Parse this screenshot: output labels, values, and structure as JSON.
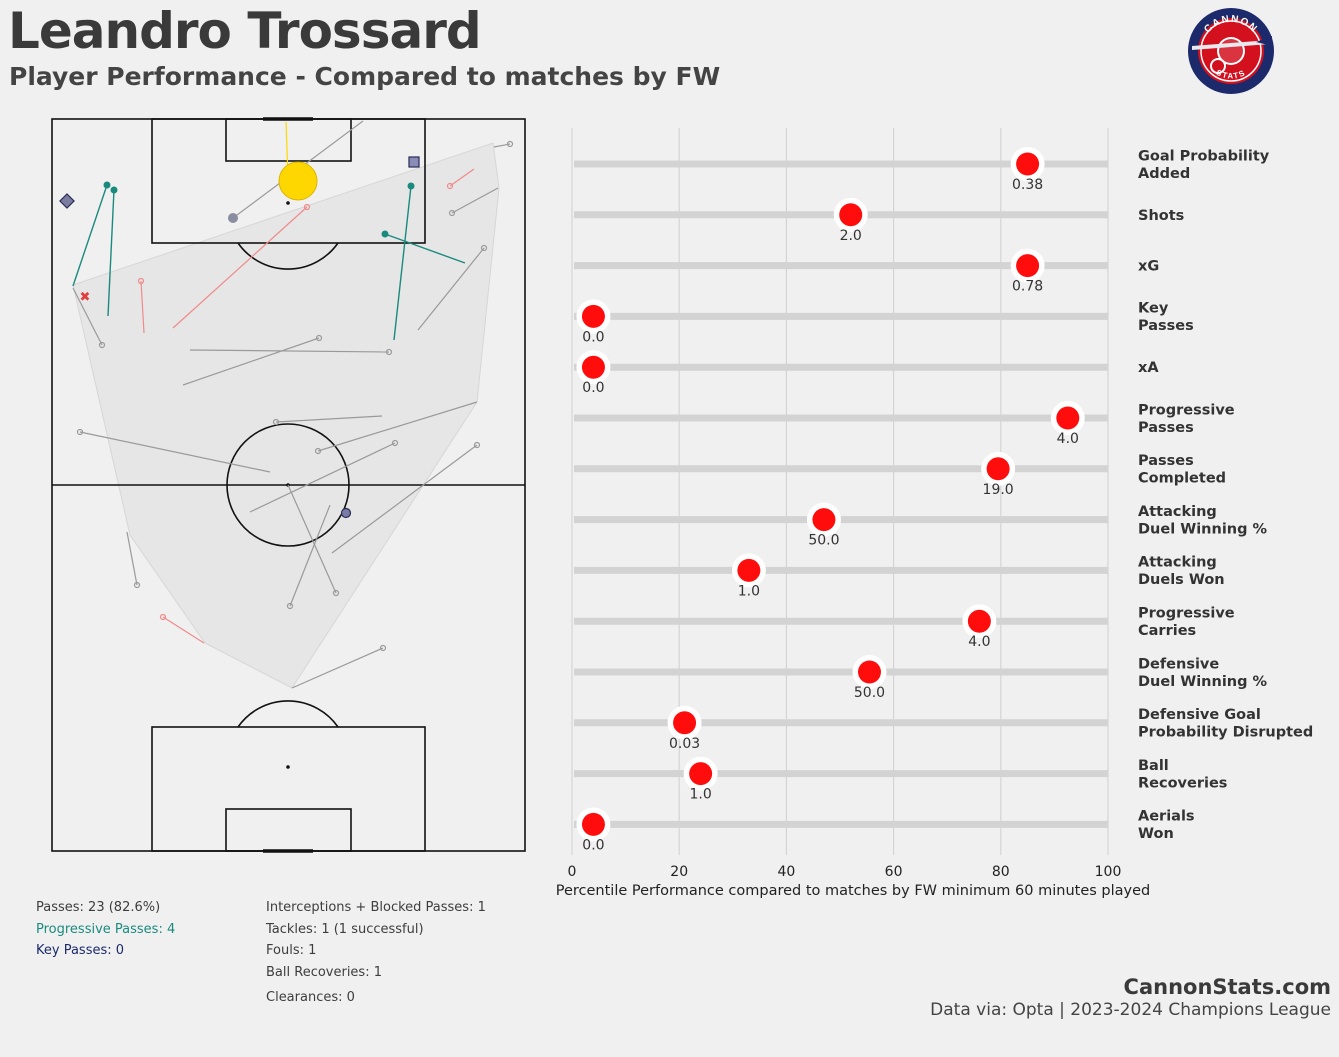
{
  "header": {
    "title": "Leandro Trossard",
    "subtitle": "Player Performance - Compared to matches by FW"
  },
  "logo": {
    "top_text": "CANNON",
    "bottom_text": "STATS"
  },
  "colors": {
    "background": "#f0f0f0",
    "dot": "#ff0d0d",
    "track": "#d3d3d3",
    "progressive_pass": "#1a8a7e",
    "key_pass": "#1c2a6b",
    "failed_pass": "#f08a8a",
    "completed_pass": "#9a9a9a",
    "shot_goal": "#ffd700"
  },
  "stats_left": {
    "passes": "Passes: 23 (82.6%)",
    "progressive_passes": "Progressive Passes: 4",
    "key_passes": "Key Passes: 0"
  },
  "stats_right": {
    "interceptions": "Interceptions + Blocked Passes: 1",
    "tackles": "Tackles: 1 (1 successful)",
    "fouls": "Fouls: 1",
    "ball_recoveries": "Ball Recoveries: 1",
    "clearances": "Clearances: 0"
  },
  "footer": {
    "brand": "CannonStats.com",
    "source": "Data via: Opta | 2023-2024 Champions League"
  },
  "chart_data": {
    "type": "dot",
    "orientation": "horizontal",
    "xlabel": "Percentile Performance compared to matches by FW minimum 60 minutes played",
    "xlim": [
      0,
      100
    ],
    "xticks": [
      0,
      20,
      40,
      60,
      80,
      100
    ],
    "grid": true,
    "metrics": [
      {
        "label": [
          "Goal Probability",
          "Added"
        ],
        "percentile": 85,
        "value_label": "0.38"
      },
      {
        "label": [
          "Shots"
        ],
        "percentile": 52,
        "value_label": "2.0"
      },
      {
        "label": [
          "xG"
        ],
        "percentile": 85,
        "value_label": "0.78"
      },
      {
        "label": [
          "Key",
          "Passes"
        ],
        "percentile": 4,
        "value_label": "0.0"
      },
      {
        "label": [
          "xA"
        ],
        "percentile": 4,
        "value_label": "0.0"
      },
      {
        "label": [
          "Progressive",
          "Passes"
        ],
        "percentile": 92.5,
        "value_label": "4.0"
      },
      {
        "label": [
          "Passes",
          "Completed"
        ],
        "percentile": 79.5,
        "value_label": "19.0"
      },
      {
        "label": [
          "Attacking",
          "Duel Winning %"
        ],
        "percentile": 47,
        "value_label": "50.0"
      },
      {
        "label": [
          "Attacking",
          "Duels Won"
        ],
        "percentile": 33,
        "value_label": "1.0"
      },
      {
        "label": [
          "Progressive",
          "Carries"
        ],
        "percentile": 76,
        "value_label": "4.0"
      },
      {
        "label": [
          "Defensive",
          "Duel Winning %"
        ],
        "percentile": 55.5,
        "value_label": "50.0"
      },
      {
        "label": [
          "Defensive Goal",
          "Probability Disrupted"
        ],
        "percentile": 21,
        "value_label": "0.03"
      },
      {
        "label": [
          "Ball",
          "Recoveries"
        ],
        "percentile": 24,
        "value_label": "1.0"
      },
      {
        "label": [
          "Aerials",
          "Won"
        ],
        "percentile": 4,
        "value_label": "0.0"
      }
    ]
  }
}
